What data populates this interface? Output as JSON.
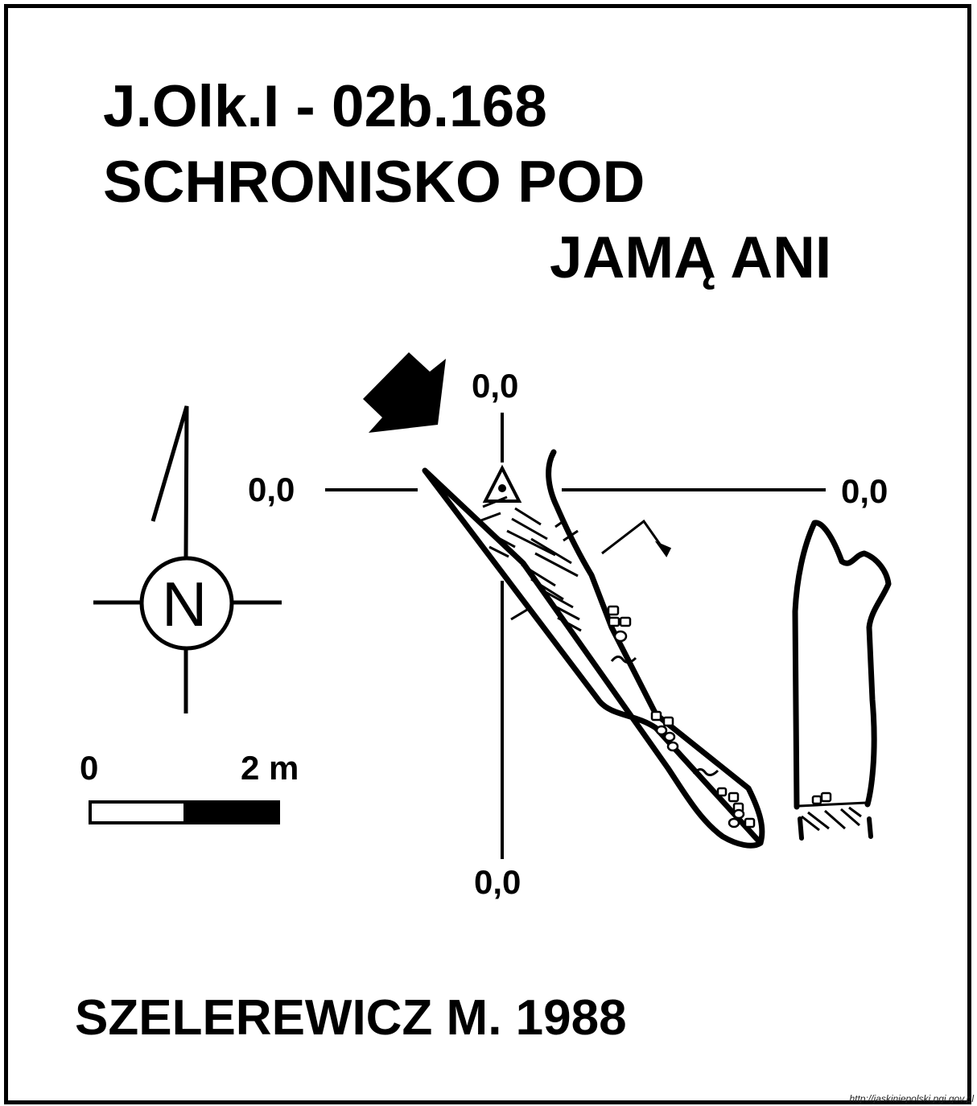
{
  "title": {
    "line1": "J.Olk.I - 02b.168",
    "line2": "SCHRONISKO POD",
    "line3": "JAMĄ ANI"
  },
  "coordinates": {
    "top": "0,0",
    "left": "0,0",
    "right": "0,0",
    "bottom": "0,0"
  },
  "north_arrow": {
    "label": "N"
  },
  "scale": {
    "start_label": "0",
    "end_label": "2 m"
  },
  "author": "SZELEREWICZ M. 1988",
  "source": "http://jaskiniepolski.pgi.gov.pl",
  "colors": {
    "ink": "#000000",
    "paper": "#ffffff"
  }
}
